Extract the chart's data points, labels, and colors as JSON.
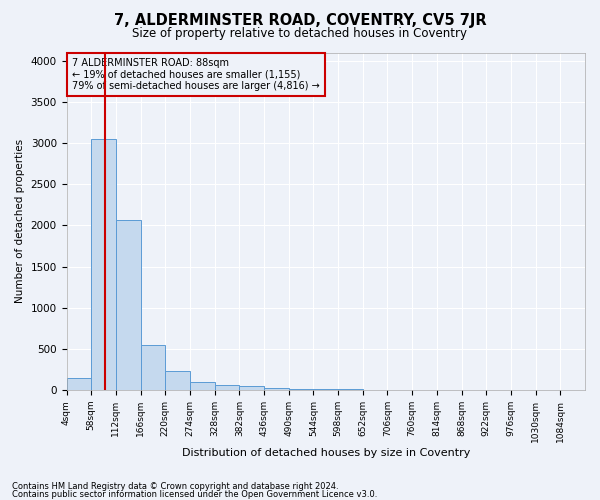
{
  "title": "7, ALDERMINSTER ROAD, COVENTRY, CV5 7JR",
  "subtitle": "Size of property relative to detached houses in Coventry",
  "xlabel": "Distribution of detached houses by size in Coventry",
  "ylabel": "Number of detached properties",
  "bin_edges": [
    4,
    58,
    112,
    166,
    220,
    274,
    328,
    382,
    436,
    490,
    544,
    598,
    652,
    706,
    760,
    814,
    868,
    922,
    976,
    1030,
    1084
  ],
  "bar_heights": [
    150,
    3050,
    2060,
    545,
    230,
    100,
    65,
    50,
    25,
    15,
    10,
    8,
    5,
    4,
    3,
    2,
    2,
    1,
    1,
    1
  ],
  "bar_color": "#c5d9ee",
  "bar_edgecolor": "#5b9bd5",
  "property_size": 88,
  "annotation_line1": "7 ALDERMINSTER ROAD: 88sqm",
  "annotation_line2": "← 19% of detached houses are smaller (1,155)",
  "annotation_line3": "79% of semi-detached houses are larger (4,816) →",
  "annotation_box_color": "#cc0000",
  "ylim": [
    0,
    4100
  ],
  "yticks": [
    0,
    500,
    1000,
    1500,
    2000,
    2500,
    3000,
    3500,
    4000
  ],
  "footer_line1": "Contains HM Land Registry data © Crown copyright and database right 2024.",
  "footer_line2": "Contains public sector information licensed under the Open Government Licence v3.0.",
  "bg_color": "#eef2f9",
  "grid_color": "#ffffff",
  "title_fontsize": 10.5,
  "subtitle_fontsize": 8.5
}
